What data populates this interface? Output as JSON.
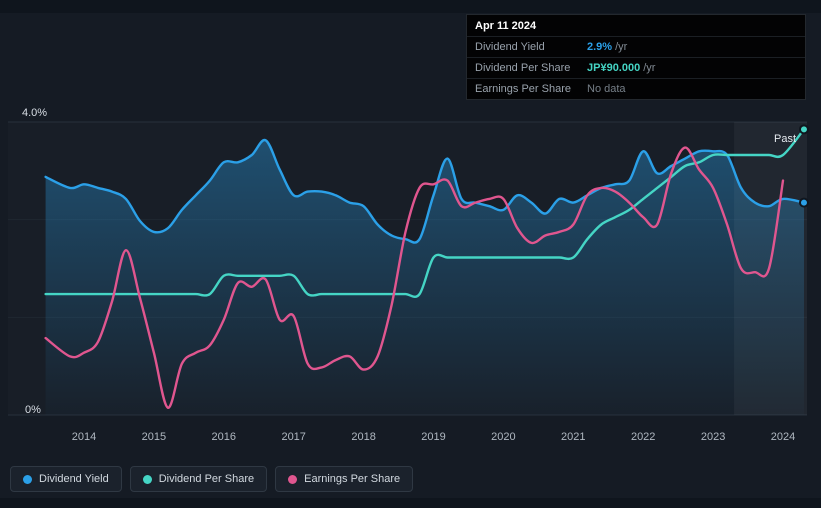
{
  "tooltip": {
    "date": "Apr 11 2024",
    "rows": [
      {
        "label": "Dividend Yield",
        "value": "2.9%",
        "suffix": "/yr",
        "color": "#2ba0e8"
      },
      {
        "label": "Dividend Per Share",
        "value": "JP¥90.000",
        "suffix": "/yr",
        "color": "#45d5c5"
      },
      {
        "label": "Earnings Per Share",
        "value": "No data",
        "suffix": "",
        "color": "#767f88"
      }
    ]
  },
  "past_label": "Past",
  "legend": [
    {
      "label": "Dividend Yield",
      "color": "#2ba0e8"
    },
    {
      "label": "Dividend Per Share",
      "color": "#45d5c5"
    },
    {
      "label": "Earnings Per Share",
      "color": "#e0568f"
    }
  ],
  "chart_data": {
    "type": "line",
    "x_ticks": [
      "2014",
      "2015",
      "2016",
      "2017",
      "2018",
      "2019",
      "2020",
      "2021",
      "2022",
      "2023",
      "2024"
    ],
    "y_top_label": "4.0%",
    "y_zero_label": "0%",
    "ylim": [
      0,
      4
    ],
    "grid_values": [
      0,
      1.333,
      2.667,
      4
    ],
    "legend_position": "bottom-left",
    "past_band_start_x": 2023.3,
    "x": [
      2013.45,
      2013.8,
      2014.0,
      2014.2,
      2014.4,
      2014.6,
      2014.8,
      2015.0,
      2015.2,
      2015.4,
      2015.6,
      2015.8,
      2016.0,
      2016.2,
      2016.4,
      2016.6,
      2016.8,
      2017.0,
      2017.2,
      2017.4,
      2017.6,
      2017.8,
      2018.0,
      2018.2,
      2018.4,
      2018.6,
      2018.8,
      2019.0,
      2019.2,
      2019.4,
      2019.6,
      2019.8,
      2020.0,
      2020.2,
      2020.4,
      2020.6,
      2020.8,
      2021.0,
      2021.2,
      2021.4,
      2021.6,
      2021.8,
      2022.0,
      2022.2,
      2022.4,
      2022.6,
      2022.8,
      2023.0,
      2023.2,
      2023.4,
      2023.6,
      2023.8,
      2024.0,
      2024.3
    ],
    "series": [
      {
        "name": "Dividend Yield",
        "color": "#2ba0e8",
        "area": true,
        "end_marker": true,
        "values": [
          3.25,
          3.1,
          3.15,
          3.1,
          3.05,
          2.95,
          2.65,
          2.5,
          2.55,
          2.8,
          3.0,
          3.2,
          3.45,
          3.45,
          3.55,
          3.75,
          3.35,
          3.0,
          3.05,
          3.05,
          3.0,
          2.9,
          2.85,
          2.6,
          2.45,
          2.4,
          2.4,
          3.0,
          3.5,
          2.95,
          2.9,
          2.85,
          2.8,
          3.0,
          2.9,
          2.75,
          2.95,
          2.9,
          3.0,
          3.1,
          3.15,
          3.2,
          3.6,
          3.3,
          3.4,
          3.5,
          3.6,
          3.6,
          3.55,
          3.1,
          2.9,
          2.85,
          2.95,
          2.9
        ]
      },
      {
        "name": "Dividend Per Share",
        "color": "#45d5c5",
        "area": false,
        "end_marker": true,
        "values": [
          1.65,
          1.65,
          1.65,
          1.65,
          1.65,
          1.65,
          1.65,
          1.65,
          1.65,
          1.65,
          1.65,
          1.65,
          1.9,
          1.9,
          1.9,
          1.9,
          1.9,
          1.9,
          1.65,
          1.65,
          1.65,
          1.65,
          1.65,
          1.65,
          1.65,
          1.65,
          1.65,
          2.15,
          2.15,
          2.15,
          2.15,
          2.15,
          2.15,
          2.15,
          2.15,
          2.15,
          2.15,
          2.15,
          2.4,
          2.6,
          2.7,
          2.8,
          2.95,
          3.1,
          3.25,
          3.4,
          3.45,
          3.55,
          3.55,
          3.55,
          3.55,
          3.55,
          3.55,
          3.9
        ]
      },
      {
        "name": "Earnings Per Share",
        "color": "#e0568f",
        "area": false,
        "end_marker": false,
        "values": [
          1.05,
          0.8,
          0.85,
          1.0,
          1.55,
          2.25,
          1.6,
          0.85,
          0.1,
          0.7,
          0.85,
          0.95,
          1.3,
          1.8,
          1.75,
          1.85,
          1.3,
          1.35,
          0.7,
          0.65,
          0.75,
          0.8,
          0.62,
          0.8,
          1.5,
          2.5,
          3.1,
          3.15,
          3.2,
          2.85,
          2.9,
          2.95,
          2.95,
          2.55,
          2.35,
          2.45,
          2.5,
          2.6,
          3.0,
          3.1,
          3.05,
          2.9,
          2.7,
          2.6,
          3.3,
          3.65,
          3.35,
          3.1,
          2.6,
          2.0,
          1.95,
          2.0,
          3.2,
          null
        ]
      }
    ]
  }
}
